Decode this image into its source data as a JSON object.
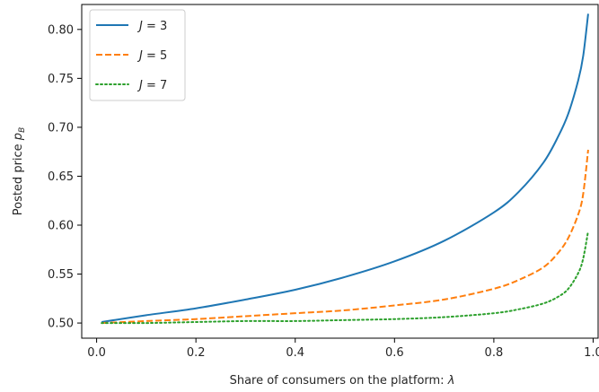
{
  "chart_data": {
    "type": "line",
    "xlabel": "Share of consumers on the platform: ",
    "xlabel_symbol": "λ",
    "ylabel": "Posted price ",
    "ylabel_symbol": "p",
    "ylabel_subscript": "B",
    "xlim": [
      -0.03,
      1.01
    ],
    "ylim": [
      0.4845,
      0.8255
    ],
    "xticks": [
      0.0,
      0.2,
      0.4,
      0.6,
      0.8,
      1.0
    ],
    "xtick_labels": [
      "0.0",
      "0.2",
      "0.4",
      "0.6",
      "0.8",
      "1.0"
    ],
    "yticks": [
      0.5,
      0.55,
      0.6,
      0.65,
      0.7,
      0.75,
      0.8
    ],
    "ytick_labels": [
      "0.50",
      "0.55",
      "0.60",
      "0.65",
      "0.70",
      "0.75",
      "0.80"
    ],
    "grid": false,
    "legend_position": "top-left",
    "series": [
      {
        "name": "J = 3",
        "name_symbol": "J",
        "name_value": "= 3",
        "color": "#1f77b4",
        "style": "solid",
        "x": [
          0.01,
          0.1,
          0.2,
          0.3,
          0.4,
          0.5,
          0.6,
          0.7,
          0.8,
          0.85,
          0.9,
          0.93,
          0.95,
          0.97,
          0.98,
          0.99
        ],
        "y": [
          0.501,
          0.508,
          0.515,
          0.524,
          0.534,
          0.547,
          0.563,
          0.584,
          0.613,
          0.634,
          0.664,
          0.691,
          0.714,
          0.748,
          0.773,
          0.816
        ]
      },
      {
        "name": "J = 5",
        "name_symbol": "J",
        "name_value": "= 5",
        "color": "#ff7f0e",
        "style": "dashed",
        "x": [
          0.01,
          0.1,
          0.2,
          0.3,
          0.4,
          0.5,
          0.6,
          0.7,
          0.8,
          0.85,
          0.9,
          0.93,
          0.95,
          0.97,
          0.98,
          0.99
        ],
        "y": [
          0.5,
          0.502,
          0.504,
          0.507,
          0.51,
          0.513,
          0.518,
          0.524,
          0.535,
          0.544,
          0.557,
          0.572,
          0.587,
          0.611,
          0.632,
          0.677
        ]
      },
      {
        "name": "J = 7",
        "name_symbol": "J",
        "name_value": "= 7",
        "color": "#2ca02c",
        "style": "dotted",
        "x": [
          0.01,
          0.1,
          0.2,
          0.3,
          0.4,
          0.5,
          0.6,
          0.7,
          0.8,
          0.85,
          0.9,
          0.93,
          0.95,
          0.97,
          0.98,
          0.99
        ],
        "y": [
          0.5,
          0.5,
          0.501,
          0.502,
          0.502,
          0.503,
          0.504,
          0.506,
          0.51,
          0.514,
          0.52,
          0.527,
          0.535,
          0.551,
          0.566,
          0.594
        ]
      }
    ]
  }
}
